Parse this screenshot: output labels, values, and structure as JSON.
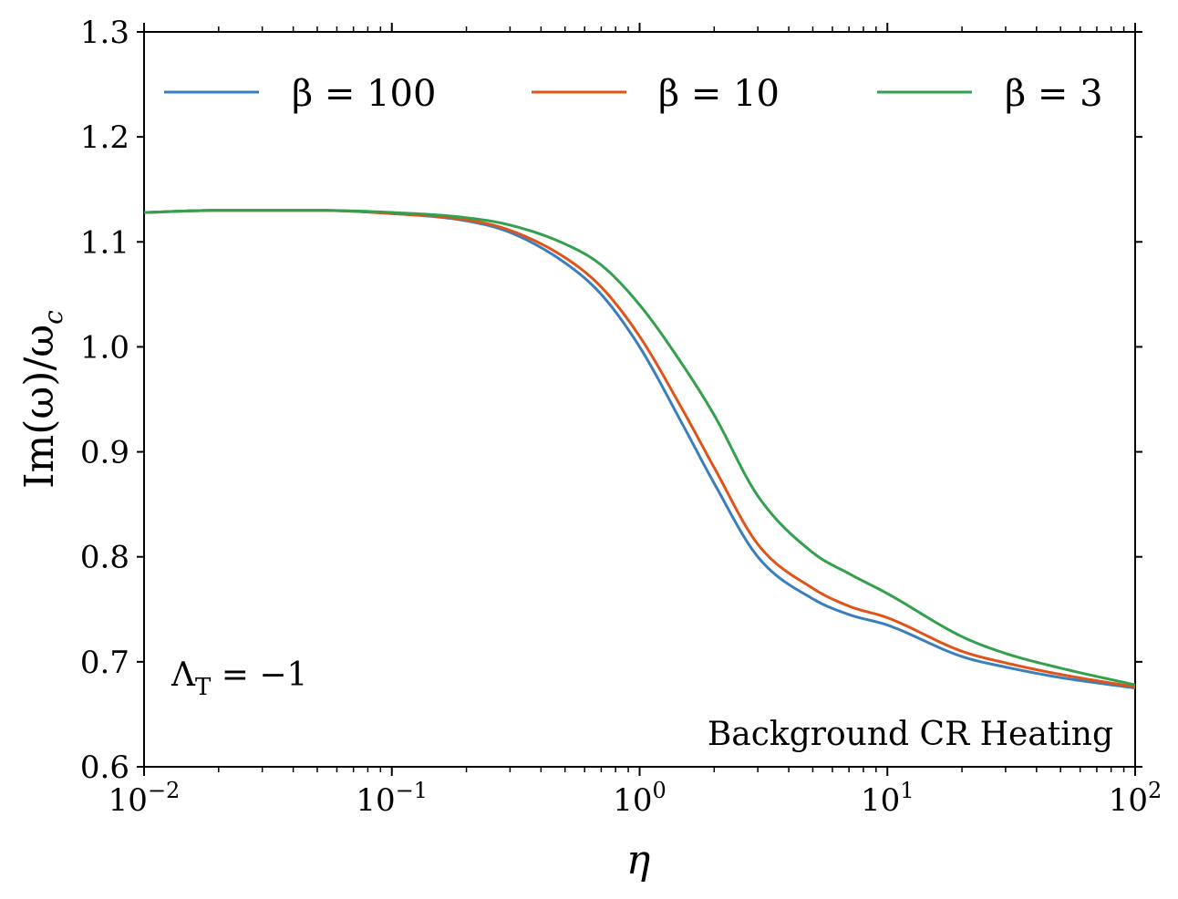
{
  "chart_data": {
    "type": "line",
    "xscale": "log",
    "xlim": [
      0.01,
      100
    ],
    "ylim": [
      0.6,
      1.3
    ],
    "xlabel": "η",
    "ylabel": "Im(ω)/ω",
    "ylabel_sub": "c",
    "x_ticks": [
      {
        "value": 0.01,
        "base": "10",
        "exp": "−2"
      },
      {
        "value": 0.1,
        "base": "10",
        "exp": "−1"
      },
      {
        "value": 1,
        "base": "10",
        "exp": "0"
      },
      {
        "value": 10,
        "base": "10",
        "exp": "1"
      },
      {
        "value": 100,
        "base": "10",
        "exp": "2"
      }
    ],
    "y_ticks": [
      {
        "value": 0.6,
        "label": "0.6"
      },
      {
        "value": 0.7,
        "label": "0.7"
      },
      {
        "value": 0.8,
        "label": "0.8"
      },
      {
        "value": 0.9,
        "label": "0.9"
      },
      {
        "value": 1.0,
        "label": "1.0"
      },
      {
        "value": 1.1,
        "label": "1.1"
      },
      {
        "value": 1.2,
        "label": "1.2"
      },
      {
        "value": 1.3,
        "label": "1.3"
      }
    ],
    "series": [
      {
        "name": "β = 100",
        "color": "#3a7fbd",
        "x": [
          0.01,
          0.02,
          0.05,
          0.1,
          0.2,
          0.3,
          0.5,
          0.7,
          1,
          1.5,
          2,
          3,
          5,
          7,
          10,
          20,
          30,
          50,
          100
        ],
        "values": [
          1.128,
          1.13,
          1.13,
          1.127,
          1.12,
          1.109,
          1.08,
          1.05,
          1.0,
          0.925,
          0.87,
          0.8,
          0.76,
          0.745,
          0.735,
          0.705,
          0.695,
          0.685,
          0.675
        ]
      },
      {
        "name": "β = 10",
        "color": "#e0541a",
        "x": [
          0.01,
          0.02,
          0.05,
          0.1,
          0.2,
          0.3,
          0.5,
          0.7,
          1,
          1.5,
          2,
          3,
          5,
          7,
          10,
          20,
          30,
          50,
          100
        ],
        "values": [
          1.128,
          1.13,
          1.13,
          1.127,
          1.121,
          1.111,
          1.085,
          1.057,
          1.01,
          0.939,
          0.885,
          0.812,
          0.77,
          0.753,
          0.742,
          0.71,
          0.699,
          0.688,
          0.676
        ]
      },
      {
        "name": "β = 3",
        "color": "#33a04d",
        "x": [
          0.01,
          0.02,
          0.05,
          0.1,
          0.2,
          0.3,
          0.5,
          0.7,
          1,
          1.5,
          2,
          3,
          5,
          7,
          10,
          20,
          30,
          50,
          100
        ],
        "values": [
          1.128,
          1.13,
          1.13,
          1.128,
          1.123,
          1.116,
          1.098,
          1.078,
          1.04,
          0.982,
          0.935,
          0.858,
          0.804,
          0.784,
          0.765,
          0.724,
          0.708,
          0.694,
          0.678
        ]
      }
    ],
    "legend_position": "top",
    "annotations": [
      {
        "text": "Λ",
        "sub": "T",
        "rest": " = −1",
        "position": "bottom-left"
      },
      {
        "text": "Background CR Heating",
        "position": "bottom-right"
      }
    ]
  }
}
